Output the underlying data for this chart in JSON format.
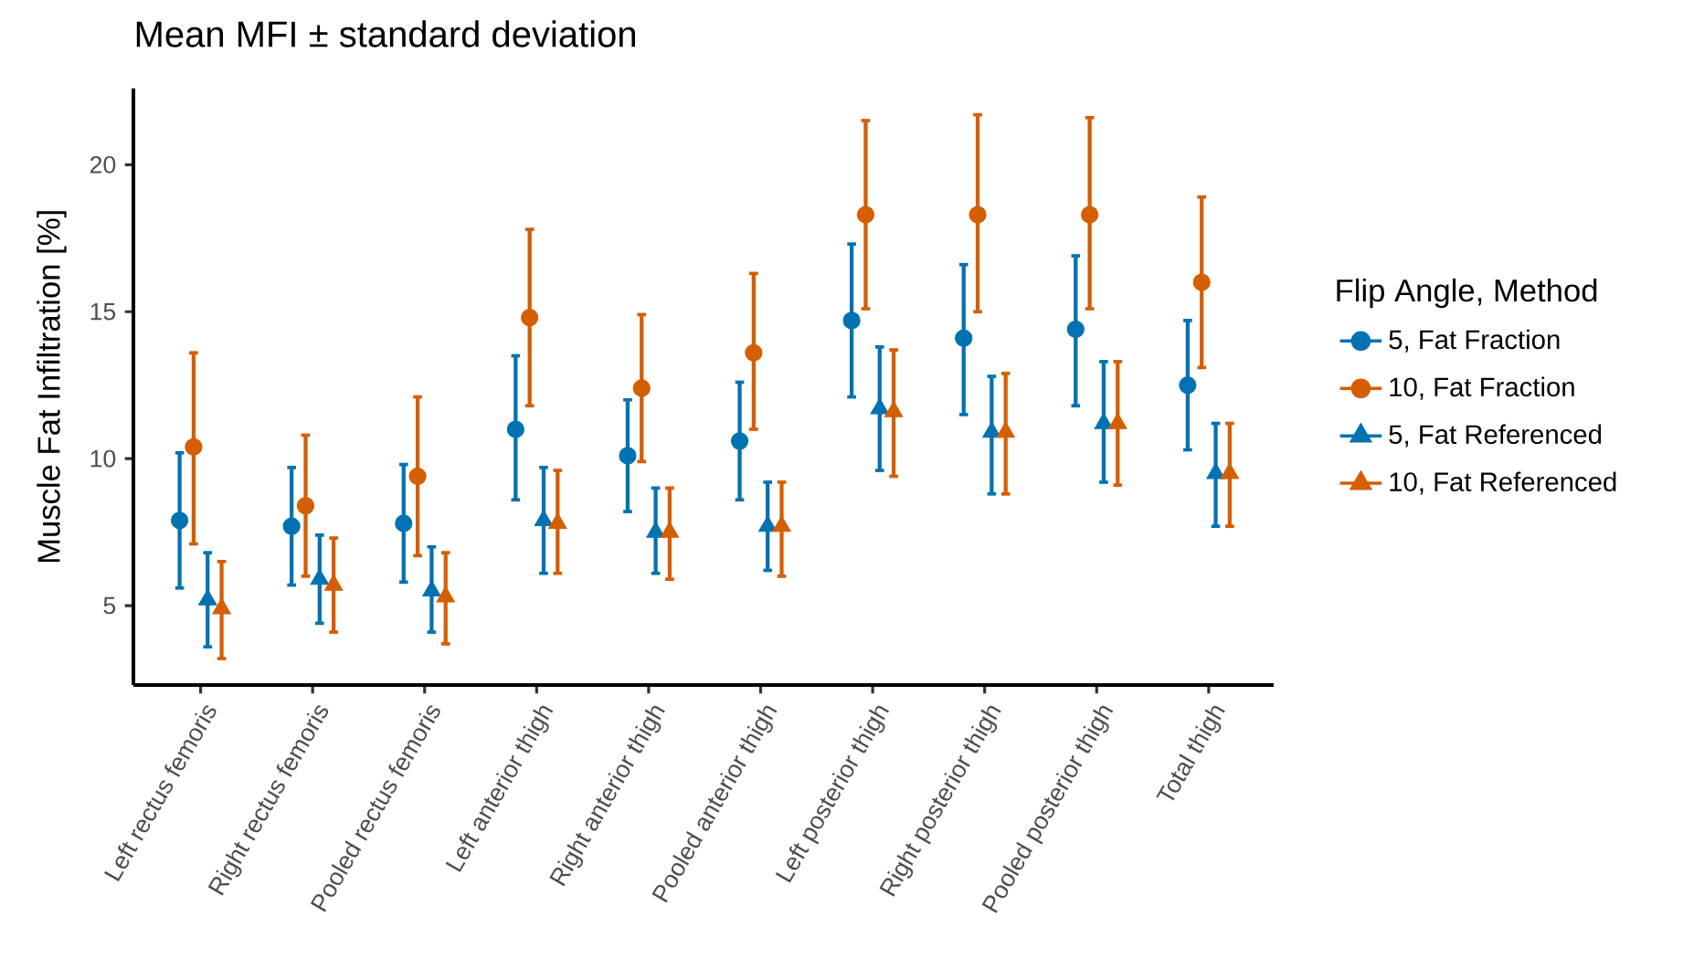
{
  "chart_data": {
    "type": "scatter",
    "title": "Mean MFI ± standard deviation",
    "ylabel": "Muscle Fat Infiltration [%]",
    "legend_title": "Flip Angle, Method",
    "legend": "right",
    "grid": false,
    "categories": [
      "Left rectus femoris",
      "Right rectus femoris",
      "Pooled rectus femoris",
      "Left anterior thigh",
      "Right anterior thigh",
      "Pooled anterior thigh",
      "Left posterior thigh",
      "Right posterior thigh",
      "Pooled posterior thigh",
      "Total thigh"
    ],
    "ylim": [
      2.3,
      22.6
    ],
    "yticks": [
      5,
      10,
      15,
      20
    ],
    "series": [
      {
        "name": "5, Fat Fraction",
        "color": "#0072B2",
        "marker": "circle",
        "values": [
          7.9,
          7.7,
          7.8,
          11.0,
          10.1,
          10.6,
          14.7,
          14.1,
          14.4,
          12.5
        ],
        "errors": [
          [
            5.6,
            10.2
          ],
          [
            5.7,
            9.7
          ],
          [
            5.8,
            9.8
          ],
          [
            8.6,
            13.5
          ],
          [
            8.2,
            12.0
          ],
          [
            8.6,
            12.6
          ],
          [
            12.1,
            17.3
          ],
          [
            11.5,
            16.6
          ],
          [
            11.8,
            16.9
          ],
          [
            10.3,
            14.7
          ]
        ]
      },
      {
        "name": "10, Fat Fraction",
        "color": "#D55E00",
        "marker": "circle",
        "values": [
          10.4,
          8.4,
          9.4,
          14.8,
          12.4,
          13.6,
          18.3,
          18.3,
          18.3,
          16.0
        ],
        "errors": [
          [
            7.1,
            13.6
          ],
          [
            6.0,
            10.8
          ],
          [
            6.7,
            12.1
          ],
          [
            11.8,
            17.8
          ],
          [
            9.9,
            14.9
          ],
          [
            11.0,
            16.3
          ],
          [
            15.1,
            21.5
          ],
          [
            15.0,
            21.7
          ],
          [
            15.1,
            21.6
          ],
          [
            13.1,
            18.9
          ]
        ]
      },
      {
        "name": "5, Fat Referenced",
        "color": "#0072B2",
        "marker": "triangle",
        "values": [
          5.2,
          5.9,
          5.5,
          7.9,
          7.5,
          7.7,
          11.7,
          10.9,
          11.2,
          9.5
        ],
        "errors": [
          [
            3.6,
            6.8
          ],
          [
            4.4,
            7.4
          ],
          [
            4.1,
            7.0
          ],
          [
            6.1,
            9.7
          ],
          [
            6.1,
            9.0
          ],
          [
            6.2,
            9.2
          ],
          [
            9.6,
            13.8
          ],
          [
            8.8,
            12.8
          ],
          [
            9.2,
            13.3
          ],
          [
            7.7,
            11.2
          ]
        ]
      },
      {
        "name": "10, Fat Referenced",
        "color": "#D55E00",
        "marker": "triangle",
        "values": [
          4.9,
          5.7,
          5.3,
          7.8,
          7.5,
          7.7,
          11.6,
          10.9,
          11.2,
          9.5
        ],
        "errors": [
          [
            3.2,
            6.5
          ],
          [
            4.1,
            7.3
          ],
          [
            3.7,
            6.8
          ],
          [
            6.1,
            9.6
          ],
          [
            5.9,
            9.0
          ],
          [
            6.0,
            9.2
          ],
          [
            9.4,
            13.7
          ],
          [
            8.8,
            12.9
          ],
          [
            9.1,
            13.3
          ],
          [
            7.7,
            11.2
          ]
        ]
      }
    ]
  }
}
